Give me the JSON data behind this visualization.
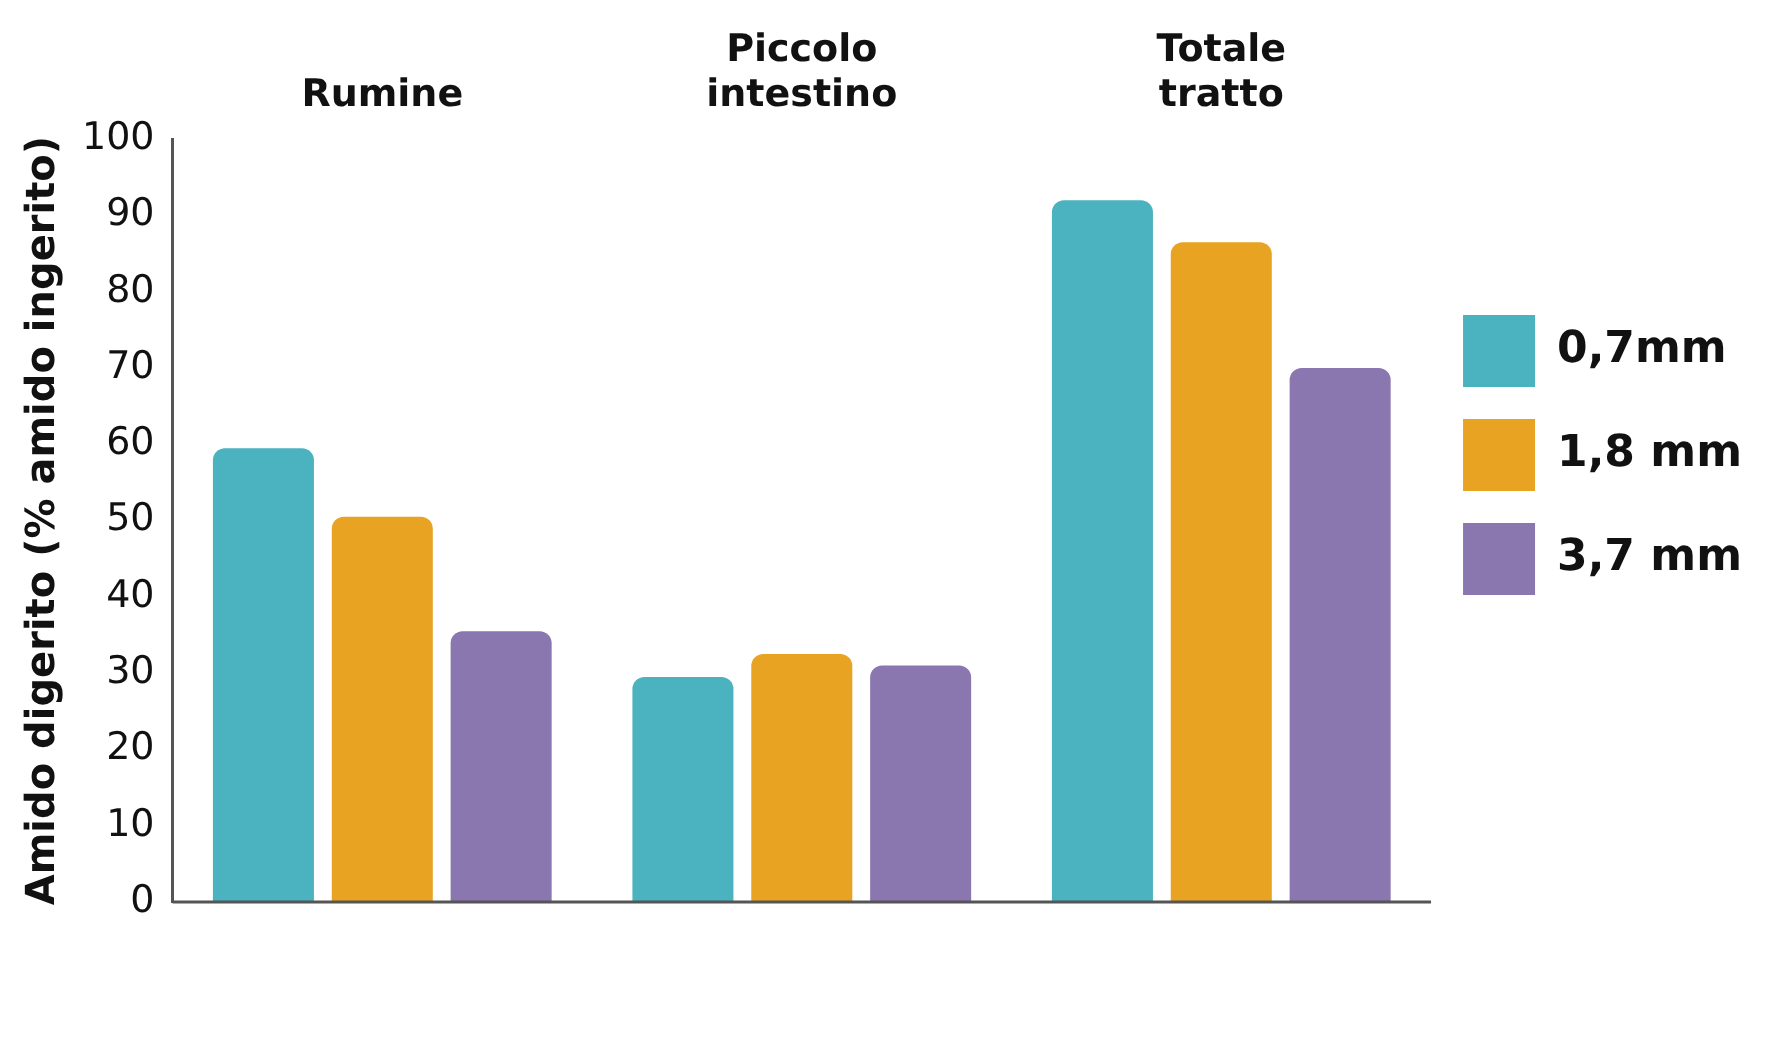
{
  "chart_data": {
    "type": "bar",
    "ylabel": "Amido digerito (% amido ingerito)",
    "categories": [
      "Rumine",
      "Piccolo intestino",
      "Totale tratto"
    ],
    "series": [
      {
        "name": "0,7mm",
        "color": "#4bb3bf",
        "values": [
          59.5,
          29.5,
          92
        ]
      },
      {
        "name": "1,8 mm",
        "color": "#e8a322",
        "values": [
          50.5,
          32.5,
          86.5
        ]
      },
      {
        "name": "3,7 mm",
        "color": "#8a77b0",
        "values": [
          35.5,
          31,
          70
        ]
      }
    ],
    "ylim": [
      0,
      100
    ],
    "yticks": [
      0,
      10,
      20,
      30,
      40,
      50,
      60,
      70,
      80,
      90,
      100
    ],
    "grid": false,
    "legend": "right"
  }
}
